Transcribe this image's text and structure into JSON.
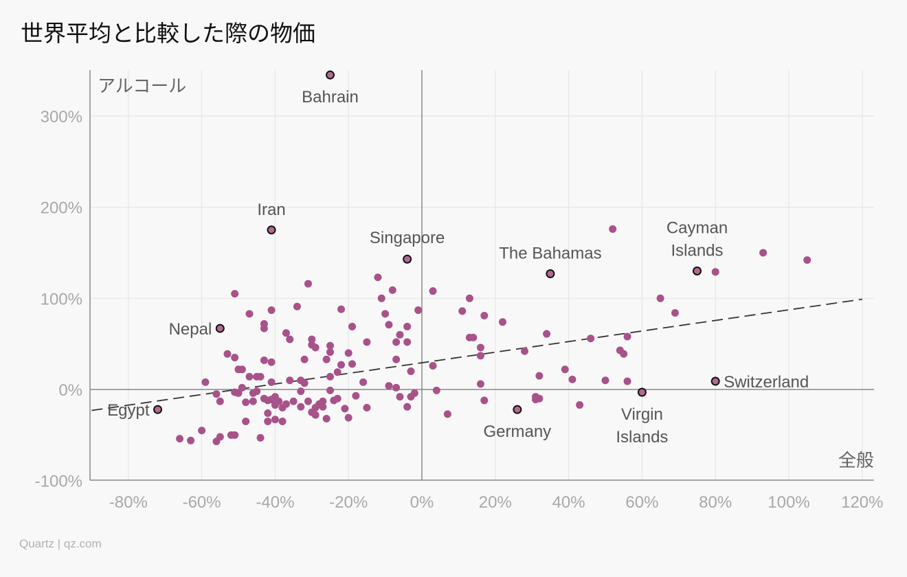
{
  "title": "世界平均と比較した際の物価",
  "credit": "Quartz | qz.com",
  "colors": {
    "point": "#a8528a",
    "highlight": "#b06a93",
    "trend": "#333333",
    "axis": "#888888",
    "grid": "#e6e6e6"
  },
  "chart_data": {
    "type": "scatter",
    "title": "世界平均と比較した際の物価",
    "xlabel": "全般",
    "ylabel": "アルコール",
    "x_unit": "%",
    "y_unit": "%",
    "xlim": [
      -90,
      123
    ],
    "ylim": [
      -100,
      350
    ],
    "x_ticks": [
      "-80%",
      "-60%",
      "-40%",
      "-20%",
      "0%",
      "20%",
      "40%",
      "60%",
      "80%",
      "100%",
      "120%"
    ],
    "y_ticks": [
      "300%",
      "200%",
      "100%",
      "0%",
      "-100%"
    ],
    "grid": true,
    "trendline": {
      "style": "dashed",
      "x": [
        -90,
        120
      ],
      "y": [
        -23,
        99
      ]
    },
    "labeled_points": [
      {
        "name": "Bahrain",
        "x": -25,
        "y": 345
      },
      {
        "name": "Iran",
        "x": -41,
        "y": 175
      },
      {
        "name": "Singapore",
        "x": -4,
        "y": 143
      },
      {
        "name": "The Bahamas",
        "x": 35,
        "y": 127
      },
      {
        "name": "Cayman Islands",
        "x": 75,
        "y": 130
      },
      {
        "name": "Nepal",
        "x": -55,
        "y": 67
      },
      {
        "name": "Switzerland",
        "x": 80,
        "y": 9
      },
      {
        "name": "Egypt",
        "x": -72,
        "y": -22
      },
      {
        "name": "Germany",
        "x": 26,
        "y": -22
      },
      {
        "name": "Virgin Islands",
        "x": 60,
        "y": -3
      }
    ],
    "points": [
      [
        -66,
        -54
      ],
      [
        -63,
        -56
      ],
      [
        -60,
        -45
      ],
      [
        -59,
        8
      ],
      [
        -56,
        -57
      ],
      [
        -55,
        -52
      ],
      [
        -56,
        -5
      ],
      [
        -55,
        -13
      ],
      [
        -53,
        39
      ],
      [
        -52,
        -50
      ],
      [
        -51,
        -50
      ],
      [
        -51,
        -3
      ],
      [
        -51,
        105
      ],
      [
        -51,
        35
      ],
      [
        -50,
        22
      ],
      [
        -50,
        -4
      ],
      [
        -49,
        22
      ],
      [
        -49,
        2
      ],
      [
        -48,
        -14
      ],
      [
        -48,
        -35
      ],
      [
        -47,
        83
      ],
      [
        -47,
        14
      ],
      [
        -46,
        -4
      ],
      [
        -46,
        -13
      ],
      [
        -45,
        -2
      ],
      [
        -45,
        14
      ],
      [
        -44,
        14
      ],
      [
        -44,
        -53
      ],
      [
        -43,
        72
      ],
      [
        -43,
        67
      ],
      [
        -43,
        -10
      ],
      [
        -43,
        32
      ],
      [
        -42,
        -26
      ],
      [
        -42,
        -35
      ],
      [
        -42,
        -12
      ],
      [
        -41,
        -11
      ],
      [
        -41,
        87
      ],
      [
        -41,
        30
      ],
      [
        -41,
        8
      ],
      [
        -40,
        -33
      ],
      [
        -40,
        -17
      ],
      [
        -40,
        -8
      ],
      [
        -39,
        -13
      ],
      [
        -38,
        -20
      ],
      [
        -38,
        -35
      ],
      [
        -37,
        -16
      ],
      [
        -37,
        62
      ],
      [
        -36,
        55
      ],
      [
        -36,
        10
      ],
      [
        -35,
        -13
      ],
      [
        -34,
        91
      ],
      [
        -33,
        -2
      ],
      [
        -33,
        -19
      ],
      [
        -33,
        10
      ],
      [
        -32,
        7
      ],
      [
        -32,
        33
      ],
      [
        -31,
        -13
      ],
      [
        -31,
        116
      ],
      [
        -30,
        55
      ],
      [
        -30,
        49
      ],
      [
        -30,
        -25
      ],
      [
        -29,
        46
      ],
      [
        -29,
        -28
      ],
      [
        -29,
        -20
      ],
      [
        -28,
        -16
      ],
      [
        -27,
        -13
      ],
      [
        -27,
        -19
      ],
      [
        -26,
        -32
      ],
      [
        -26,
        33
      ],
      [
        -25,
        41
      ],
      [
        -25,
        14
      ],
      [
        -25,
        48
      ],
      [
        -25,
        -1
      ],
      [
        -24,
        -12
      ],
      [
        -23,
        -10
      ],
      [
        -23,
        19
      ],
      [
        -22,
        27
      ],
      [
        -22,
        88
      ],
      [
        -21,
        -21
      ],
      [
        -20,
        -31
      ],
      [
        -20,
        40
      ],
      [
        -19,
        69
      ],
      [
        -19,
        28
      ],
      [
        -18,
        -7
      ],
      [
        -16,
        8
      ],
      [
        -15,
        -20
      ],
      [
        -15,
        52
      ],
      [
        -12,
        123
      ],
      [
        -11,
        100
      ],
      [
        -10,
        83
      ],
      [
        -9,
        4
      ],
      [
        -9,
        71
      ],
      [
        -8,
        109
      ],
      [
        -7,
        33
      ],
      [
        -7,
        2
      ],
      [
        -7,
        52
      ],
      [
        -6,
        -8
      ],
      [
        -6,
        60
      ],
      [
        -4,
        69
      ],
      [
        -4,
        52
      ],
      [
        -4,
        -19
      ],
      [
        -3,
        -8
      ],
      [
        -3,
        20
      ],
      [
        -2,
        -4
      ],
      [
        -1,
        87
      ],
      [
        3,
        26
      ],
      [
        3,
        108
      ],
      [
        4,
        -1
      ],
      [
        7,
        -27
      ],
      [
        11,
        86
      ],
      [
        13,
        57
      ],
      [
        13,
        100
      ],
      [
        14,
        57
      ],
      [
        16,
        37
      ],
      [
        16,
        46
      ],
      [
        16,
        6
      ],
      [
        17,
        81
      ],
      [
        17,
        -12
      ],
      [
        22,
        74
      ],
      [
        28,
        42
      ],
      [
        31,
        -8
      ],
      [
        31,
        -11
      ],
      [
        32,
        -10
      ],
      [
        32,
        15
      ],
      [
        34,
        61
      ],
      [
        39,
        22
      ],
      [
        41,
        11
      ],
      [
        43,
        -17
      ],
      [
        46,
        56
      ],
      [
        50,
        10
      ],
      [
        52,
        176
      ],
      [
        54,
        43
      ],
      [
        55,
        39
      ],
      [
        56,
        58
      ],
      [
        56,
        9
      ],
      [
        65,
        100
      ],
      [
        69,
        84
      ],
      [
        80,
        129
      ],
      [
        93,
        150
      ],
      [
        105,
        142
      ]
    ]
  }
}
